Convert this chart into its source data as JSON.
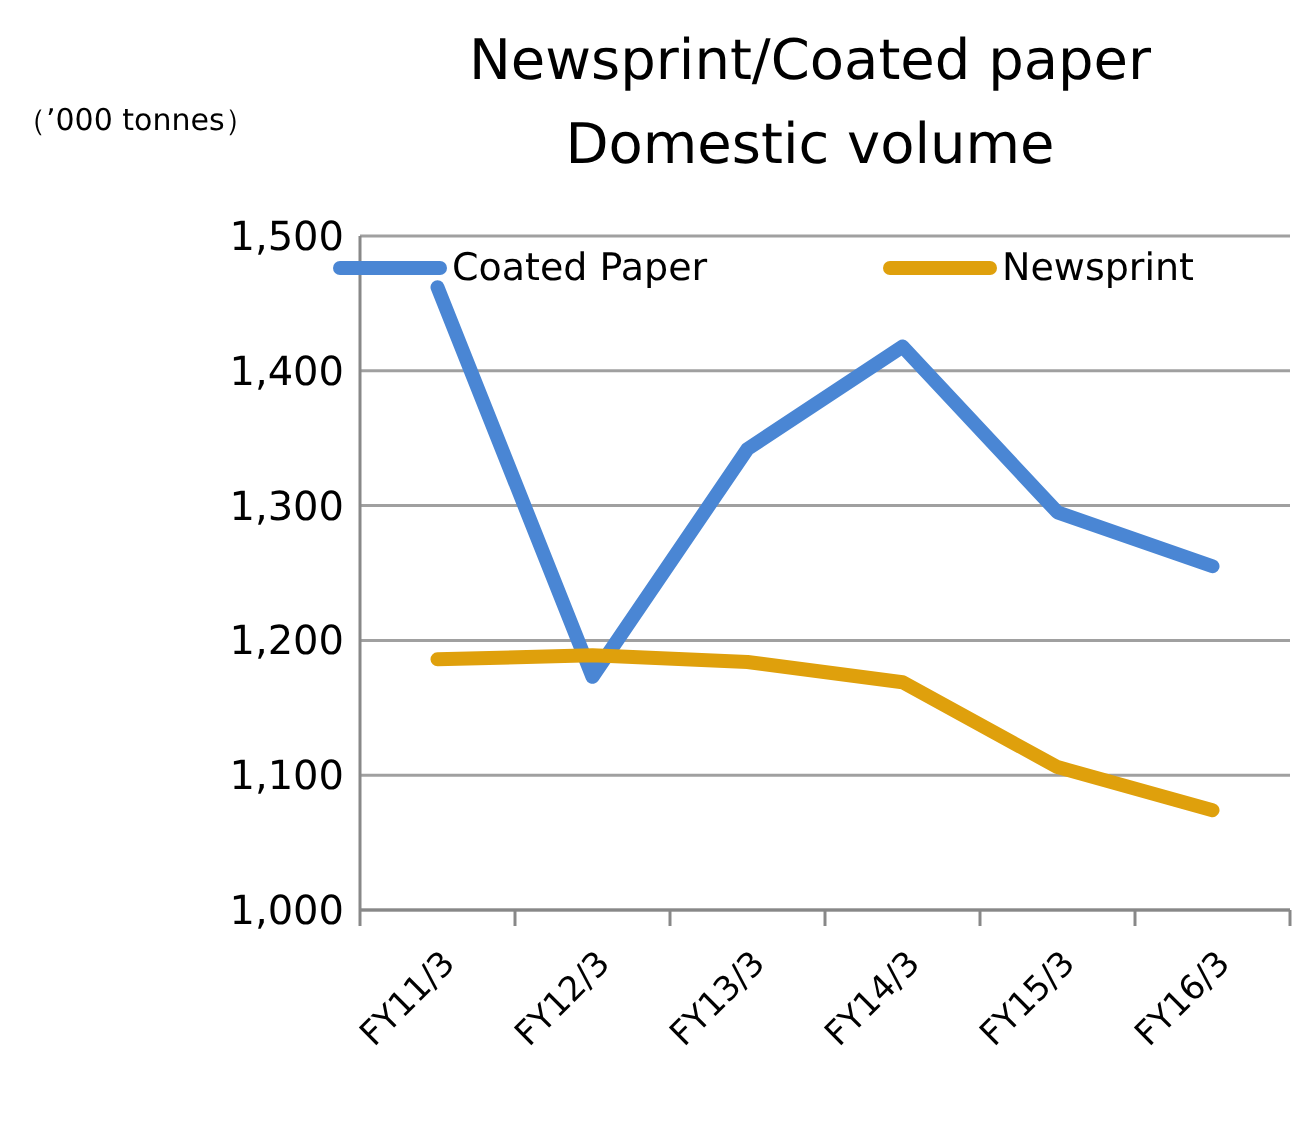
{
  "chart_data": {
    "type": "line",
    "title": "Newsprint/Coated paper\nDomestic volume",
    "ylabel": "（’000 tonnes）",
    "categories": [
      "FY11/3",
      "FY12/3",
      "FY13/3",
      "FY14/3",
      "FY15/3",
      "FY16/3"
    ],
    "series": [
      {
        "name": "Coated Paper",
        "color": "#4a86d4",
        "values": [
          1462,
          1173,
          1342,
          1418,
          1295,
          1255
        ]
      },
      {
        "name": "Newsprint",
        "color": "#dfa00c",
        "values": [
          1186,
          1189,
          1184,
          1169,
          1106,
          1074
        ]
      }
    ],
    "ylim": [
      1000,
      1500
    ],
    "yticks": [
      {
        "value": 1000,
        "label": "1,000"
      },
      {
        "value": 1100,
        "label": "1,100"
      },
      {
        "value": 1200,
        "label": "1,200"
      },
      {
        "value": 1300,
        "label": "1,300"
      },
      {
        "value": 1400,
        "label": "1,400"
      },
      {
        "value": 1500,
        "label": "1,500"
      }
    ],
    "grid": "y",
    "legend": "top",
    "marker": "none",
    "line_style": "solid"
  }
}
